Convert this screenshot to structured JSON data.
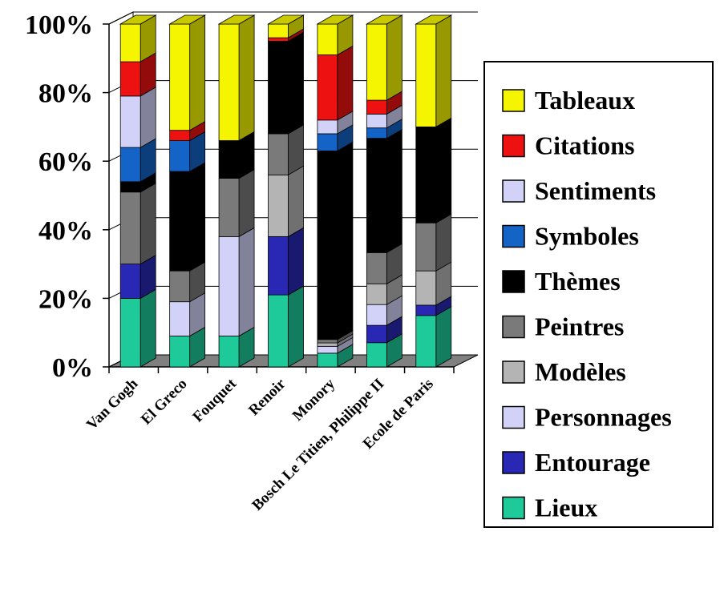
{
  "chart_data": {
    "type": "bar",
    "stacked": true,
    "percent": true,
    "three_d": true,
    "categories": [
      "Van Gogh",
      "El Greco",
      "Fouquet",
      "Renoir",
      "Monory",
      "Bosch Le Titien, Philippe II",
      "Ecole de Paris"
    ],
    "y_ticks": [
      "0%",
      "20%",
      "40%",
      "60%",
      "80%",
      "100%"
    ],
    "ylim": [
      0,
      100
    ],
    "legend_position": "right",
    "series": [
      {
        "name": "Lieux",
        "color": "#1ec99a",
        "values": [
          20,
          9,
          9,
          21,
          4,
          7,
          15
        ]
      },
      {
        "name": "Entourage",
        "color": "#2828b4",
        "values": [
          10,
          0,
          0,
          17,
          0,
          5,
          3
        ]
      },
      {
        "name": "Personnages",
        "color": "#d2d2f8",
        "values": [
          0,
          10,
          29,
          0,
          2,
          6,
          0
        ]
      },
      {
        "name": "Modèles",
        "color": "#b4b4b4",
        "values": [
          0,
          0,
          0,
          18,
          1,
          6,
          10
        ]
      },
      {
        "name": "Peintres",
        "color": "#7a7a7a",
        "values": [
          21,
          9,
          17,
          12,
          1,
          9,
          14
        ]
      },
      {
        "name": "Thèmes",
        "color": "#000000",
        "values": [
          3,
          29,
          11,
          27,
          55,
          33,
          28
        ]
      },
      {
        "name": "Symboles",
        "color": "#1464c8",
        "values": [
          10,
          9,
          0,
          0,
          5,
          3,
          0
        ]
      },
      {
        "name": "Sentiments",
        "color": "#d2d2f8",
        "values": [
          15,
          0,
          0,
          0,
          4,
          4,
          0
        ]
      },
      {
        "name": "Citations",
        "color": "#ee1111",
        "values": [
          10,
          3,
          0,
          1,
          19,
          4,
          0
        ]
      },
      {
        "name": "Tableaux",
        "color": "#f5f500",
        "values": [
          11,
          31,
          34,
          4,
          9,
          22,
          30
        ]
      }
    ]
  }
}
